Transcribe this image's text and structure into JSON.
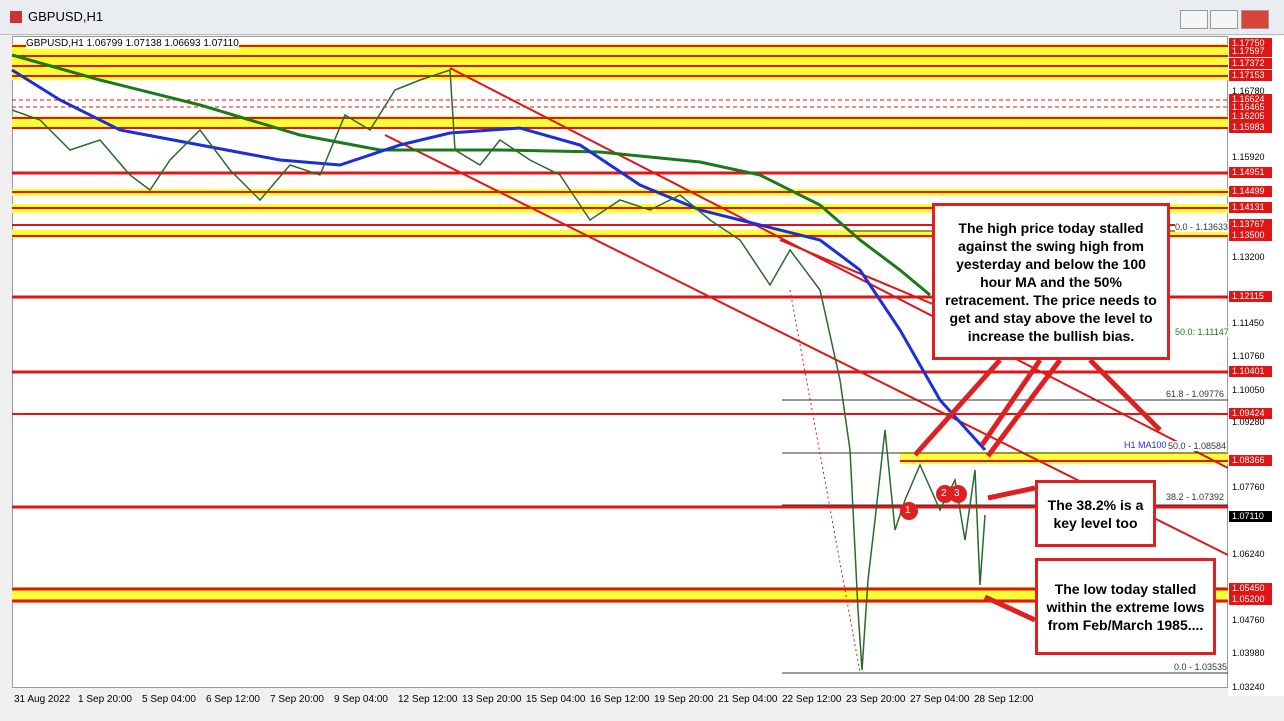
{
  "window": {
    "title": "GBPUSD,H1"
  },
  "chart": {
    "header": "GBPUSD,H1  1.06799 1.07138 1.06693 1.07110",
    "price_labels": [
      "1.17750",
      "1.17597",
      "1.17372",
      "1.17153",
      "1.16780",
      "1.16624",
      "1.16465",
      "1.16205",
      "1.15983",
      "1.15920",
      "1.14951",
      "1.14499",
      "1.14131",
      "1.13767",
      "1.13500",
      "1.13200",
      "1.12115",
      "1.11450",
      "1.10760",
      "1.10401",
      "1.10050",
      "1.09424",
      "1.09280",
      "1.08366",
      "1.07760",
      "1.07110",
      "1.06240",
      "1.05450",
      "1.05200",
      "1.04760",
      "1.03980",
      "1.03240"
    ],
    "time_labels": [
      "31 Aug 2022",
      "1 Sep 20:00",
      "5 Sep 04:00",
      "6 Sep 12:00",
      "7 Sep 20:00",
      "9 Sep 04:00",
      "12 Sep 12:00",
      "13 Sep 20:00",
      "15 Sep 04:00",
      "16 Sep 12:00",
      "19 Sep 20:00",
      "21 Sep 04:00",
      "22 Sep 12:00",
      "23 Sep 20:00",
      "27 Sep 04:00",
      "28 Sep 12:00"
    ],
    "level_labels": [
      "0.0 - 1.13633",
      "50.0: 1.11147",
      "61.8 - 1.09776",
      "H1 MA100",
      "50.0 - 1.08584",
      "38.2 - 1.07392",
      "0.0 - 1.03535"
    ],
    "markers": [
      "1",
      "2",
      "3"
    ],
    "annotations": [
      "The high price today stalled against the swing high from yesterday and below the 100 hour MA and the 50% retracement. The price needs to get and stay above the level to increase the bullish bias.",
      "The 38.2% is a key level too",
      "The low today stalled within the extreme lows from Feb/March 1985...."
    ]
  }
}
